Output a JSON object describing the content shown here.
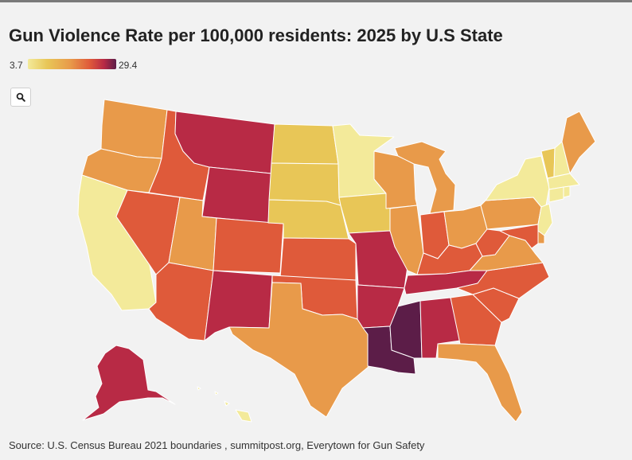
{
  "title": "Gun Violence Rate per 100,000 residents: 2025 by U.S State",
  "legend": {
    "min_label": "3.7",
    "max_label": "29.4"
  },
  "controls": {
    "zoom_icon": "search-icon"
  },
  "source": "Source: U.S. Census Bureau 2021 boundaries , summitpost.org, Everytown for Gun Safety",
  "colors": {
    "background": "#f2f2f2",
    "scale": [
      "#f3ea9a",
      "#e8c657",
      "#e89a4a",
      "#df5a3a",
      "#b82a45",
      "#5c1d48"
    ]
  },
  "states": [
    {
      "id": "WA",
      "name": "Washington",
      "level": 2
    },
    {
      "id": "OR",
      "name": "Oregon",
      "level": 2
    },
    {
      "id": "CA",
      "name": "California",
      "level": 0
    },
    {
      "id": "ID",
      "name": "Idaho",
      "level": 3
    },
    {
      "id": "NV",
      "name": "Nevada",
      "level": 3
    },
    {
      "id": "MT",
      "name": "Montana",
      "level": 4
    },
    {
      "id": "WY",
      "name": "Wyoming",
      "level": 4
    },
    {
      "id": "UT",
      "name": "Utah",
      "level": 2
    },
    {
      "id": "AZ",
      "name": "Arizona",
      "level": 3
    },
    {
      "id": "CO",
      "name": "Colorado",
      "level": 3
    },
    {
      "id": "NM",
      "name": "New Mexico",
      "level": 4
    },
    {
      "id": "ND",
      "name": "North Dakota",
      "level": 1
    },
    {
      "id": "SD",
      "name": "South Dakota",
      "level": 1
    },
    {
      "id": "NE",
      "name": "Nebraska",
      "level": 1
    },
    {
      "id": "KS",
      "name": "Kansas",
      "level": 3
    },
    {
      "id": "OK",
      "name": "Oklahoma",
      "level": 3
    },
    {
      "id": "TX",
      "name": "Texas",
      "level": 2
    },
    {
      "id": "MN",
      "name": "Minnesota",
      "level": 0
    },
    {
      "id": "IA",
      "name": "Iowa",
      "level": 1
    },
    {
      "id": "MO",
      "name": "Missouri",
      "level": 4
    },
    {
      "id": "AR",
      "name": "Arkansas",
      "level": 4
    },
    {
      "id": "LA",
      "name": "Louisiana",
      "level": 5
    },
    {
      "id": "WI",
      "name": "Wisconsin",
      "level": 2
    },
    {
      "id": "IL",
      "name": "Illinois",
      "level": 2
    },
    {
      "id": "MI",
      "name": "Michigan",
      "level": 2
    },
    {
      "id": "IN",
      "name": "Indiana",
      "level": 3
    },
    {
      "id": "OH",
      "name": "Ohio",
      "level": 2
    },
    {
      "id": "KY",
      "name": "Kentucky",
      "level": 3
    },
    {
      "id": "TN",
      "name": "Tennessee",
      "level": 4
    },
    {
      "id": "MS",
      "name": "Mississippi",
      "level": 5
    },
    {
      "id": "AL",
      "name": "Alabama",
      "level": 4
    },
    {
      "id": "GA",
      "name": "Georgia",
      "level": 3
    },
    {
      "id": "FL",
      "name": "Florida",
      "level": 2
    },
    {
      "id": "SC",
      "name": "South Carolina",
      "level": 3
    },
    {
      "id": "NC",
      "name": "North Carolina",
      "level": 3
    },
    {
      "id": "VA",
      "name": "Virginia",
      "level": 2
    },
    {
      "id": "WV",
      "name": "West Virginia",
      "level": 3
    },
    {
      "id": "PA",
      "name": "Pennsylvania",
      "level": 2
    },
    {
      "id": "NY",
      "name": "New York",
      "level": 0
    },
    {
      "id": "VT",
      "name": "Vermont",
      "level": 1
    },
    {
      "id": "NH",
      "name": "New Hampshire",
      "level": 0
    },
    {
      "id": "ME",
      "name": "Maine",
      "level": 2
    },
    {
      "id": "MA",
      "name": "Massachusetts",
      "level": 0
    },
    {
      "id": "CT",
      "name": "Connecticut",
      "level": 0
    },
    {
      "id": "RI",
      "name": "Rhode Island",
      "level": 0
    },
    {
      "id": "NJ",
      "name": "New Jersey",
      "level": 0
    },
    {
      "id": "DE",
      "name": "Delaware",
      "level": 2
    },
    {
      "id": "MD",
      "name": "Maryland",
      "level": 3
    },
    {
      "id": "AK",
      "name": "Alaska",
      "level": 4
    },
    {
      "id": "HI",
      "name": "Hawaii",
      "level": 0
    }
  ]
}
